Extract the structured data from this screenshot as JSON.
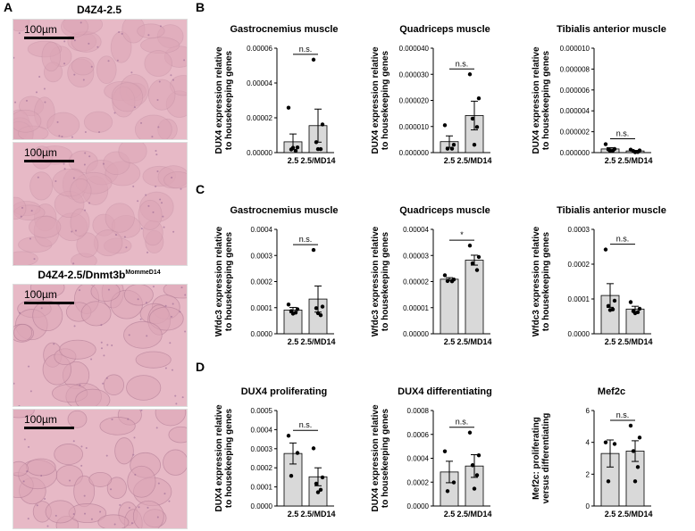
{
  "panel_letters": {
    "a": "A",
    "b": "B",
    "c": "C",
    "d": "D"
  },
  "panel_a": {
    "title_top": "D4Z4-2.5",
    "title_bottom_main": "D4Z4-2.5/Dnmt3b",
    "title_bottom_sup": "MommeD14",
    "scale_label": "100µm",
    "colors": {
      "tissue": "#e7b9c6",
      "fiber": "#dca5b6",
      "line": "#b07b94"
    }
  },
  "chart_data": [
    {
      "id": "b1",
      "type": "bar",
      "title": "Gastrocnemius muscle",
      "ylabel_lines": [
        "DUX4 expression relative",
        "to housekeeping genes"
      ],
      "categories": [
        "2.5",
        "2.5/MD14"
      ],
      "ylim": [
        0,
        6e-05
      ],
      "yticks": [
        "0.00000",
        "0.00002",
        "0.00004",
        "0.00006"
      ],
      "values": [
        6.2e-06,
        1.55e-05
      ],
      "errors": [
        4.5e-06,
        9.5e-06
      ],
      "points": [
        [
          2.58e-05,
          3e-06,
          1.8e-06,
          1e-06,
          2.8e-06
        ],
        [
          5.34e-05,
          1.62e-05,
          6e-06,
          2e-06,
          2e-06
        ]
      ],
      "significance": "n.s."
    },
    {
      "id": "b2",
      "type": "bar",
      "title": "Quadriceps muscle",
      "ylabel_lines": [
        "DUX4 expression relative",
        "to housekeeping genes"
      ],
      "categories": [
        "2.5",
        "2.5/MD14"
      ],
      "ylim": [
        0,
        4e-05
      ],
      "yticks": [
        "0.000000",
        "0.000010",
        "0.000020",
        "0.000030",
        "0.000040"
      ],
      "values": [
        4.2e-06,
        1.42e-05
      ],
      "errors": [
        2.2e-06,
        5.5e-06
      ],
      "points": [
        [
          1.05e-05,
          3e-06,
          1.5e-06,
          1.5e-06
        ],
        [
          3e-05,
          2.08e-05,
          1.3e-05,
          9.8e-06,
          3e-06
        ]
      ],
      "significance": "n.s."
    },
    {
      "id": "b3",
      "type": "bar",
      "title": "Tibialis anterior muscle",
      "ylabel_lines": [
        "DUX4 expression relative",
        "to housekeeping genes"
      ],
      "categories": [
        "2.5",
        "2.5/MD14"
      ],
      "ylim": [
        0,
        0.0001
      ],
      "yticks": [
        "0.000000",
        "0.000002",
        "0.000004",
        "0.000006",
        "0.000008",
        "0.000010"
      ],
      "values": [
        3.5e-06,
        1.6e-06
      ],
      "errors": [
        1.2e-06,
        5e-07
      ],
      "points": [
        [
          8.1e-06,
          3.5e-06,
          3e-06,
          1.8e-06,
          1.6e-06
        ],
        [
          2.8e-06,
          2.1e-06,
          1.5e-06,
          6e-07,
          4e-07
        ]
      ],
      "significance": "n.s."
    },
    {
      "id": "c1",
      "type": "bar",
      "title": "Gastrocnemius muscle",
      "ylabel_lines": [
        "Wfdc3 expression relative",
        "to housekeeping genes"
      ],
      "categories": [
        "2.5",
        "2.5/MD14"
      ],
      "ylim": [
        0,
        0.0004
      ],
      "yticks": [
        "0.0000",
        "0.0001",
        "0.0002",
        "0.0003",
        "0.0004"
      ],
      "values": [
        9.1e-05,
        0.000133
      ],
      "errors": [
        1e-05,
        5e-05
      ],
      "points": [
        [
          0.000112,
          9.4e-05,
          8.7e-05,
          8.1e-05,
          7.7e-05
        ],
        [
          0.000321,
          0.000104,
          9.8e-05,
          7.1e-05,
          7.9e-05
        ]
      ],
      "significance": "n.s."
    },
    {
      "id": "c2",
      "type": "bar",
      "title": "Quadriceps muscle",
      "ylabel_lines": [
        "Wfdc3 expression relative",
        "to housekeeping genes"
      ],
      "categories": [
        "2.5",
        "2.5/MD14"
      ],
      "ylim": [
        0,
        4e-05
      ],
      "yticks": [
        "0.00000",
        "0.00001",
        "0.00002",
        "0.00003",
        "0.00004"
      ],
      "values": [
        2.09e-05,
        2.82e-05
      ],
      "errors": [
        6e-07,
        1.9e-06
      ],
      "points": [
        [
          2.24e-05,
          2.08e-05,
          2.02e-05,
          2.01e-05
        ],
        [
          3.38e-05,
          2.94e-05,
          2.7e-05,
          2.44e-05
        ]
      ],
      "significance": "*"
    },
    {
      "id": "c3",
      "type": "bar",
      "title": "Tibialis anterior muscle",
      "ylabel_lines": [
        "Wfdc3 expression relative",
        "to housekeeping genes"
      ],
      "categories": [
        "2.5",
        "2.5/MD14"
      ],
      "ylim": [
        0,
        0.0003
      ],
      "yticks": [
        "0.0000",
        "0.0001",
        "0.0002",
        "0.0003"
      ],
      "values": [
        0.00011,
        7.1e-05
      ],
      "errors": [
        3.4e-05,
        8e-06
      ],
      "points": [
        [
          0.000242,
          9.5e-05,
          8e-05,
          7e-05,
          6.8e-05
        ],
        [
          9.1e-05,
          7.2e-05,
          6.5e-05,
          6.2e-05,
          5.9e-05
        ]
      ],
      "significance": "n.s."
    },
    {
      "id": "d1",
      "type": "bar",
      "title": "DUX4 proliferating",
      "ylabel_lines": [
        "DUX4 expression relative",
        "to housekeeping genes"
      ],
      "categories": [
        "2.5",
        "2.5/MD14"
      ],
      "ylim": [
        0,
        0.0005
      ],
      "yticks": [
        "0.0000",
        "0.0001",
        "0.0002",
        "0.0003",
        "0.0004",
        "0.0005"
      ],
      "values": [
        0.000275,
        0.000153
      ],
      "errors": [
        5.5e-05,
        4.7e-05
      ],
      "points": [
        [
          0.000368,
          0.000278,
          0.000158
        ],
        [
          0.000302,
          0.00015,
          0.000117,
          8.5e-05,
          7.2e-05
        ]
      ],
      "significance": "n.s."
    },
    {
      "id": "d2",
      "type": "bar",
      "title": "DUX4 differentiating",
      "ylabel_lines": [
        "DUX4 expression relative",
        "to housekeeping genes"
      ],
      "categories": [
        "2.5",
        "2.5/MD14"
      ],
      "ylim": [
        0,
        0.0008
      ],
      "yticks": [
        "0.0000",
        "0.0002",
        "0.0004",
        "0.0006",
        "0.0008"
      ],
      "values": [
        0.000285,
        0.000335
      ],
      "errors": [
        9e-05,
        9.5e-05
      ],
      "points": [
        [
          0.000458,
          0.000198,
          0.000125
        ],
        [
          0.000615,
          0.000425,
          0.000342,
          0.000258,
          0.000145
        ]
      ],
      "significance": "n.s."
    },
    {
      "id": "d3",
      "type": "bar",
      "title": "Mef2c",
      "ylabel_lines": [
        "Mef2c: proliferating",
        "versus differentiating"
      ],
      "categories": [
        "2.5",
        "2.5/MD14"
      ],
      "ylim": [
        0,
        6
      ],
      "yticks": [
        "0",
        "2",
        "4",
        "6"
      ],
      "values": [
        3.3,
        3.45
      ],
      "errors": [
        0.85,
        0.65
      ],
      "points": [
        [
          4.0,
          3.9,
          1.55
        ],
        [
          5.05,
          4.3,
          3.45,
          2.45,
          1.55
        ]
      ],
      "significance": "n.s."
    }
  ]
}
